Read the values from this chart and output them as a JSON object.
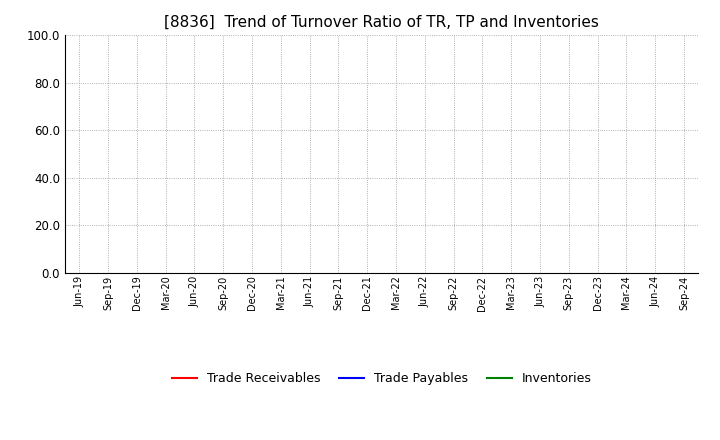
{
  "title": "[8836]  Trend of Turnover Ratio of TR, TP and Inventories",
  "title_fontsize": 11,
  "title_fontweight": "normal",
  "ylim": [
    0.0,
    100.0
  ],
  "yticks": [
    0.0,
    20.0,
    40.0,
    60.0,
    80.0,
    100.0
  ],
  "x_labels": [
    "Jun-19",
    "Sep-19",
    "Dec-19",
    "Mar-20",
    "Jun-20",
    "Sep-20",
    "Dec-20",
    "Mar-21",
    "Jun-21",
    "Sep-21",
    "Dec-21",
    "Mar-22",
    "Jun-22",
    "Sep-22",
    "Dec-22",
    "Mar-23",
    "Jun-23",
    "Sep-23",
    "Dec-23",
    "Mar-24",
    "Jun-24",
    "Sep-24"
  ],
  "trade_receivables_color": "#FF0000",
  "trade_payables_color": "#0000FF",
  "inventories_color": "#008000",
  "legend_labels": [
    "Trade Receivables",
    "Trade Payables",
    "Inventories"
  ],
  "background_color": "#FFFFFF",
  "grid_color": "#999999",
  "line_width": 1.5,
  "trade_receivables_values": [
    null,
    null,
    null,
    null,
    null,
    null,
    null,
    null,
    null,
    null,
    null,
    null,
    null,
    null,
    null,
    null,
    null,
    null,
    null,
    null,
    null,
    null
  ],
  "trade_payables_values": [
    null,
    null,
    null,
    null,
    null,
    null,
    null,
    null,
    null,
    null,
    null,
    null,
    null,
    null,
    null,
    null,
    null,
    null,
    null,
    null,
    null,
    null
  ],
  "inventories_values": [
    null,
    null,
    null,
    null,
    null,
    null,
    null,
    null,
    null,
    null,
    null,
    null,
    null,
    null,
    null,
    null,
    null,
    null,
    null,
    null,
    null,
    null
  ],
  "ytick_fontsize": 8.5,
  "xtick_fontsize": 7.0,
  "legend_fontsize": 9
}
